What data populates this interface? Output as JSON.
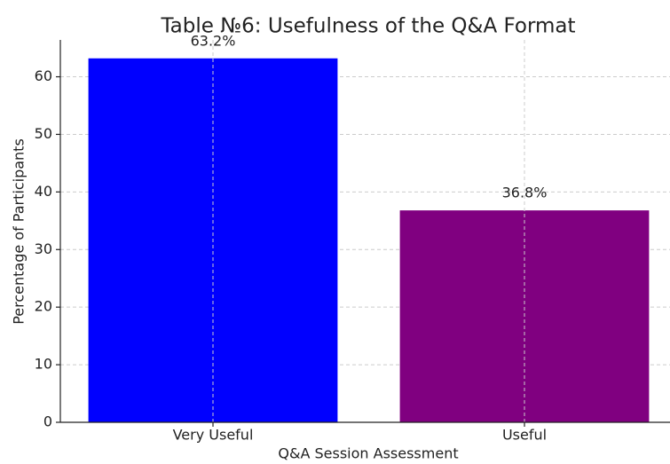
{
  "chart_data": {
    "type": "bar",
    "title": "Table №6: Usefulness of the Q&A Format",
    "x_label": "Q&A Session Assessment",
    "y_label": "Percentage of Participants",
    "categories": [
      "Very Useful",
      "Useful"
    ],
    "values": [
      63.2,
      36.8
    ],
    "value_labels": [
      "63.2%",
      "36.8%"
    ],
    "colors": [
      "#0000ff",
      "#800080"
    ],
    "ylim": [
      0,
      66.4
    ],
    "yticks": [
      0,
      10,
      20,
      30,
      40,
      50,
      60
    ],
    "grid": true
  }
}
